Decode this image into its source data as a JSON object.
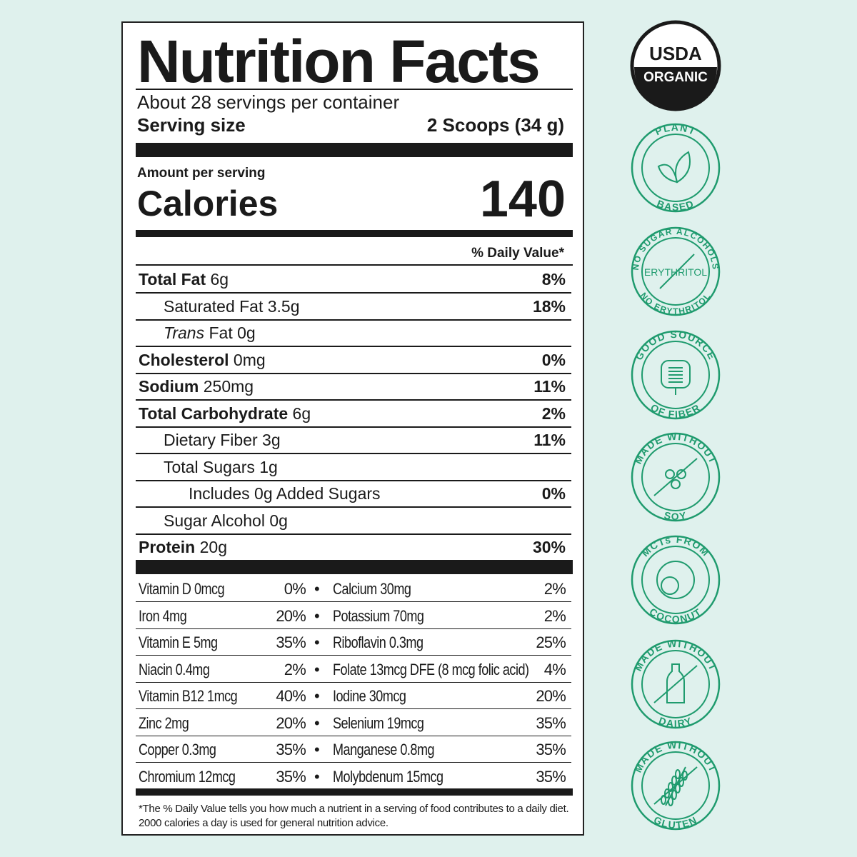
{
  "label": {
    "title": "Nutrition Facts",
    "servings": "About 28 servings per container",
    "serving_size_label": "Serving size",
    "serving_size_value": "2 Scoops (34 g)",
    "amount_per_serving": "Amount per serving",
    "calories_label": "Calories",
    "calories_value": "140",
    "daily_value_header": "% Daily Value*",
    "nutrients": [
      {
        "bold": "Total Fat",
        "name": " 6g",
        "dv": "8%",
        "indent": 0
      },
      {
        "bold": "",
        "name": "Saturated Fat 3.5g",
        "dv": "18%",
        "indent": 1
      },
      {
        "bold": "",
        "italic": "Trans",
        "name": " Fat 0g",
        "dv": "",
        "indent": 1
      },
      {
        "bold": "Cholesterol",
        "name": " 0mg",
        "dv": "0%",
        "indent": 0
      },
      {
        "bold": "Sodium",
        "name": " 250mg",
        "dv": "11%",
        "indent": 0
      },
      {
        "bold": "Total Carbohydrate",
        "name": " 6g",
        "dv": "2%",
        "indent": 0
      },
      {
        "bold": "",
        "name": "Dietary Fiber 3g",
        "dv": "11%",
        "indent": 1
      },
      {
        "bold": "",
        "name": "Total Sugars 1g",
        "dv": "",
        "indent": 1
      },
      {
        "bold": "",
        "name": "Includes 0g Added Sugars",
        "dv": "0%",
        "indent": 2
      },
      {
        "bold": "",
        "name": "Sugar Alcohol 0g",
        "dv": "",
        "indent": 1
      },
      {
        "bold": "Protein",
        "name": " 20g",
        "dv": "30%",
        "indent": 0
      }
    ],
    "vitamins": [
      {
        "l": "Vitamin D 0mcg",
        "lv": "0%",
        "r": "Calcium 30mg",
        "rv": "2%"
      },
      {
        "l": "Iron 4mg",
        "lv": "20%",
        "r": "Potassium 70mg",
        "rv": "2%"
      },
      {
        "l": "Vitamin E 5mg",
        "lv": "35%",
        "r": "Riboflavin 0.3mg",
        "rv": "25%"
      },
      {
        "l": "Niacin 0.4mg",
        "lv": "2%",
        "r": "Folate 13mcg DFE (8 mcg folic acid)",
        "rv": "4%"
      },
      {
        "l": "Vitamin B12 1mcg",
        "lv": "40%",
        "r": "Iodine 30mcg",
        "rv": "20%"
      },
      {
        "l": "Zinc 2mg",
        "lv": "20%",
        "r": "Selenium 19mcg",
        "rv": "35%"
      },
      {
        "l": "Copper 0.3mg",
        "lv": "35%",
        "r": "Manganese 0.8mg",
        "rv": "35%"
      },
      {
        "l": "Chromium 12mcg",
        "lv": "35%",
        "r": "Molybdenum 15mcg",
        "rv": "35%"
      }
    ],
    "bullet": "•",
    "footnote_1": "*The % Daily Value tells you how much a nutrient in a serving of food contributes to a daily diet.",
    "footnote_2": "2000 calories a day is used for general nutrition advice."
  },
  "badges": [
    {
      "type": "usda",
      "top": "USDA",
      "bottom": "ORGANIC",
      "icon": "usda-organic-seal"
    },
    {
      "type": "ring",
      "top": "PLANT",
      "bottom": "BASED",
      "icon": "leaf-icon"
    },
    {
      "type": "ring",
      "top": "NO SUGAR ALCOHOLS",
      "bottom": "NO ERYTHRITOL",
      "center": "ERYTHRITOL",
      "icon": "strikethrough-icon"
    },
    {
      "type": "ring",
      "top": "GOOD SOURCE",
      "bottom": "OF FIBER",
      "icon": "intestine-icon"
    },
    {
      "type": "ring",
      "top": "MADE WITHOUT",
      "bottom": "SOY",
      "icon": "soybean-icon"
    },
    {
      "type": "ring",
      "top": "MCTs FROM",
      "bottom": "COCONUT",
      "icon": "coconut-icon"
    },
    {
      "type": "ring",
      "top": "MADE WITHOUT",
      "bottom": "DAIRY",
      "icon": "milk-bottle-icon"
    },
    {
      "type": "ring",
      "top": "MADE WITHOUT",
      "bottom": "GLUTEN",
      "icon": "wheat-icon"
    }
  ],
  "colors": {
    "background": "#dff1ed",
    "badge_green": "#1f9b6e",
    "ink": "#1a1a1a"
  }
}
